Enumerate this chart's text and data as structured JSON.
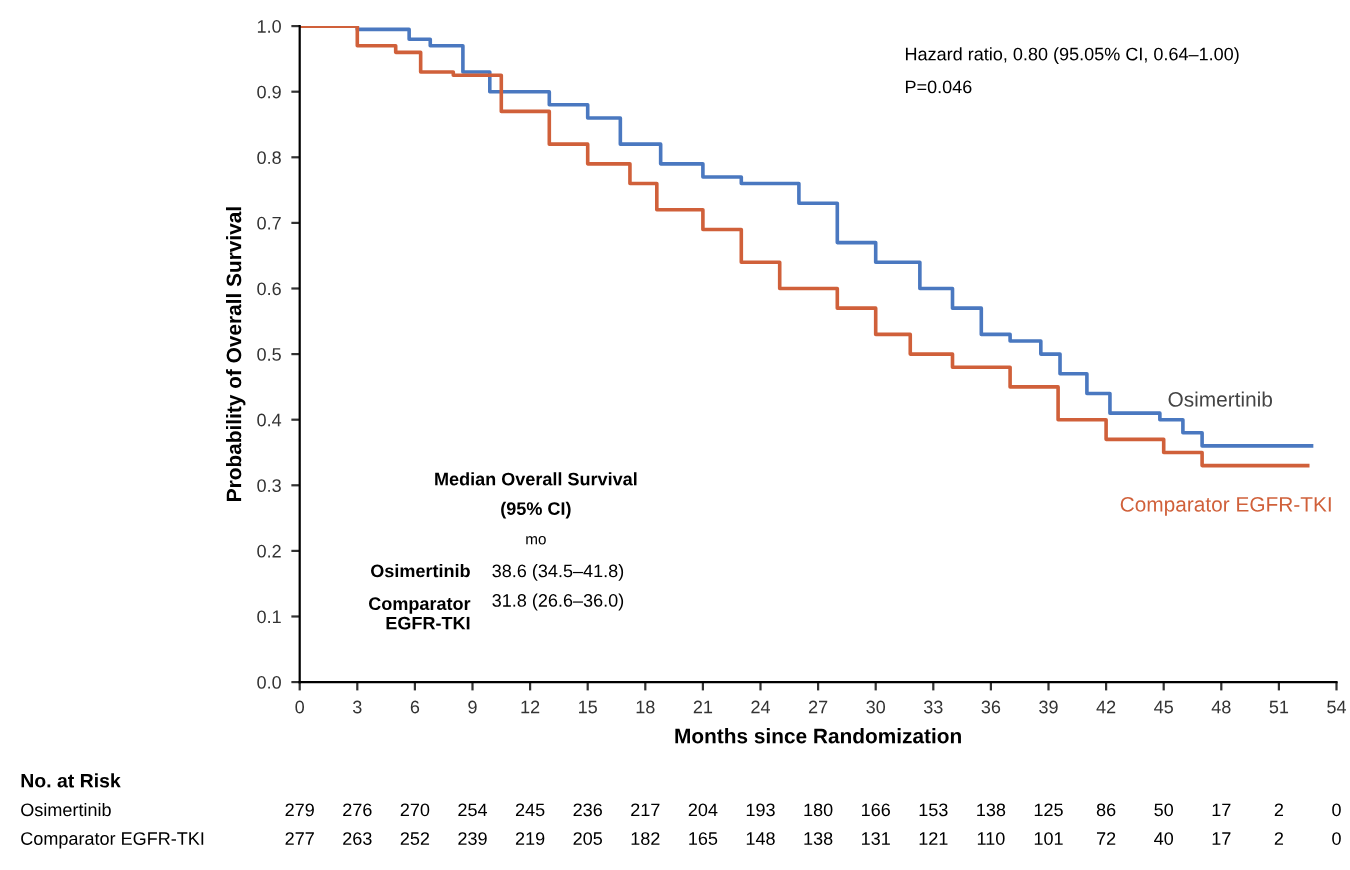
{
  "chart_data": {
    "type": "step",
    "xlabel": "Months since Randomization",
    "ylabel": "Probability of Overall Survival",
    "xlim": [
      0,
      54
    ],
    "xticks": [
      0,
      3,
      6,
      9,
      12,
      15,
      18,
      21,
      24,
      27,
      30,
      33,
      36,
      39,
      42,
      45,
      48,
      51,
      54
    ],
    "ylim": [
      0,
      1
    ],
    "yticks": [
      {
        "value": 0,
        "label": "0.0"
      },
      {
        "value": 0.1,
        "label": "0.1"
      },
      {
        "value": 0.2,
        "label": "0.2"
      },
      {
        "value": 0.3,
        "label": "0.3"
      },
      {
        "value": 0.4,
        "label": "0.4"
      },
      {
        "value": 0.5,
        "label": "0.5"
      },
      {
        "value": 0.6,
        "label": "0.6"
      },
      {
        "value": 0.7,
        "label": "0.7"
      },
      {
        "value": 0.8,
        "label": "0.8"
      },
      {
        "value": 0.9,
        "label": "0.9"
      },
      {
        "value": 1,
        "label": "1.0"
      }
    ],
    "grid": false,
    "legend": false,
    "series": [
      {
        "name": "Osimertinib",
        "color": "#4a78c0",
        "x": [
          0,
          3,
          5.7,
          6.8,
          8.5,
          9.9,
          13,
          15,
          16.7,
          18.8,
          21,
          23,
          26,
          28,
          30,
          32.3,
          34,
          35.5,
          37,
          38.6,
          39.6,
          41,
          42.2,
          44.8,
          46,
          47,
          52.7
        ],
        "values": [
          1.0,
          0.995,
          0.98,
          0.97,
          0.93,
          0.9,
          0.88,
          0.86,
          0.82,
          0.79,
          0.77,
          0.76,
          0.73,
          0.67,
          0.64,
          0.6,
          0.57,
          0.53,
          0.52,
          0.5,
          0.47,
          0.44,
          0.41,
          0.4,
          0.38,
          0.36,
          0.36
        ]
      },
      {
        "name": "Comparator EGFR-TKI",
        "color": "#d0603a",
        "x": [
          0,
          3,
          5,
          6.3,
          8,
          10.5,
          13,
          15,
          17.2,
          18.6,
          21,
          23,
          25,
          28,
          30,
          31.8,
          34,
          37,
          39.5,
          42,
          45,
          47,
          52.5
        ],
        "values": [
          1.0,
          0.97,
          0.96,
          0.93,
          0.925,
          0.87,
          0.82,
          0.79,
          0.76,
          0.72,
          0.69,
          0.64,
          0.6,
          0.57,
          0.53,
          0.5,
          0.48,
          0.45,
          0.4,
          0.37,
          0.35,
          0.33,
          0.33
        ]
      }
    ],
    "annotations": [
      "Hazard ratio, 0.80 (95.05% CI, 0.64–1.00)",
      "P=0.046",
      "Median Overall Survival",
      "(95% CI)",
      "mo",
      "Osimertinib",
      "38.6 (34.5–41.8)",
      "Comparator\nEGFR-TKI",
      "31.8 (26.6–36.0)",
      "No. at Risk",
      "Osimertinib",
      "279 276 270 254 245 236 217 204 193 180 166 153 138 125 86 50 17 2 0",
      "Comparator EGFR-TKI",
      "277 263 252 239 219 205 182 165 148 138 131 121 110 101 72 40 17 2 0"
    ]
  }
}
